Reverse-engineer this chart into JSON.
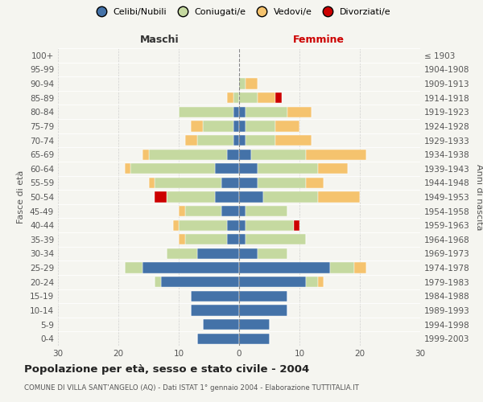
{
  "age_groups": [
    "100+",
    "95-99",
    "90-94",
    "85-89",
    "80-84",
    "75-79",
    "70-74",
    "65-69",
    "60-64",
    "55-59",
    "50-54",
    "45-49",
    "40-44",
    "35-39",
    "30-34",
    "25-29",
    "20-24",
    "15-19",
    "10-14",
    "5-9",
    "0-4"
  ],
  "birth_years": [
    "≤ 1903",
    "1904-1908",
    "1909-1913",
    "1914-1918",
    "1919-1923",
    "1924-1928",
    "1929-1933",
    "1934-1938",
    "1939-1943",
    "1944-1948",
    "1949-1953",
    "1954-1958",
    "1959-1963",
    "1964-1968",
    "1969-1973",
    "1974-1978",
    "1979-1983",
    "1984-1988",
    "1989-1993",
    "1994-1998",
    "1999-2003"
  ],
  "maschi": {
    "celibi": [
      0,
      0,
      0,
      0,
      1,
      1,
      1,
      2,
      4,
      3,
      4,
      3,
      2,
      2,
      7,
      16,
      13,
      8,
      8,
      6,
      7
    ],
    "coniugati": [
      0,
      0,
      0,
      1,
      9,
      5,
      6,
      13,
      14,
      11,
      8,
      6,
      8,
      7,
      5,
      3,
      1,
      0,
      0,
      0,
      0
    ],
    "vedovi": [
      0,
      0,
      0,
      1,
      0,
      2,
      2,
      1,
      1,
      1,
      0,
      1,
      1,
      1,
      0,
      0,
      0,
      0,
      0,
      0,
      0
    ],
    "divorziati": [
      0,
      0,
      0,
      0,
      0,
      0,
      0,
      0,
      0,
      0,
      2,
      0,
      0,
      0,
      0,
      0,
      0,
      0,
      0,
      0,
      0
    ]
  },
  "femmine": {
    "nubili": [
      0,
      0,
      0,
      0,
      1,
      1,
      1,
      2,
      3,
      3,
      4,
      1,
      1,
      1,
      3,
      15,
      11,
      8,
      8,
      5,
      5
    ],
    "coniugate": [
      0,
      0,
      1,
      3,
      7,
      5,
      5,
      9,
      10,
      8,
      9,
      7,
      8,
      10,
      5,
      4,
      2,
      0,
      0,
      0,
      0
    ],
    "vedove": [
      0,
      0,
      2,
      3,
      4,
      4,
      6,
      10,
      5,
      3,
      7,
      0,
      0,
      0,
      0,
      2,
      1,
      0,
      0,
      0,
      0
    ],
    "divorziate": [
      0,
      0,
      0,
      1,
      0,
      0,
      0,
      0,
      0,
      0,
      0,
      0,
      1,
      0,
      0,
      0,
      0,
      0,
      0,
      0,
      0
    ]
  },
  "colors": {
    "celibi": "#4472a8",
    "coniugati": "#c5d9a0",
    "vedovi": "#f5c36e",
    "divorziati": "#cc0000"
  },
  "xlim": 30,
  "title": "Popolazione per età, sesso e stato civile - 2004",
  "subtitle": "COMUNE DI VILLA SANT'ANGELO (AQ) - Dati ISTAT 1° gennaio 2004 - Elaborazione TUTTITALIA.IT",
  "ylabel_left": "Fasce di età",
  "ylabel_right": "Anni di nascita",
  "label_maschi": "Maschi",
  "label_femmine": "Femmine",
  "legend_labels": [
    "Celibi/Nubili",
    "Coniugati/e",
    "Vedovi/e",
    "Divorziati/e"
  ],
  "background_color": "#f5f5f0"
}
